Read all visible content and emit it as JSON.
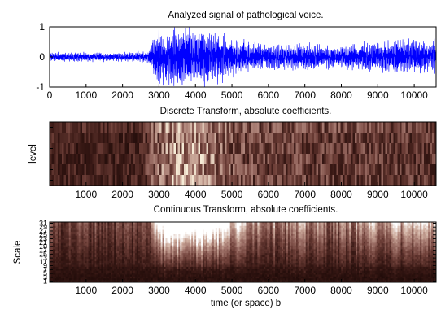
{
  "chart_data": [
    {
      "type": "line",
      "title": "Analyzed signal of pathological voice.",
      "xlabel": "",
      "ylabel": "",
      "xlim": [
        0,
        10600
      ],
      "ylim": [
        -1,
        1
      ],
      "x_ticks": [
        "0",
        "1000",
        "2000",
        "3000",
        "4000",
        "5000",
        "6000",
        "7000",
        "8000",
        "9000",
        "10000"
      ],
      "y_ticks": [
        "1",
        "0",
        "-1"
      ],
      "series_color": "#0000ff",
      "envelope": {
        "x": [
          0,
          1000,
          2000,
          2700,
          2900,
          3500,
          4000,
          4500,
          5000,
          6000,
          7000,
          8000,
          9000,
          10000,
          10600
        ],
        "amplitude": [
          0.15,
          0.15,
          0.15,
          0.18,
          0.8,
          1.0,
          1.0,
          0.9,
          0.6,
          0.42,
          0.42,
          0.38,
          0.5,
          0.55,
          0.55
        ]
      }
    },
    {
      "type": "heatmap",
      "title": "Discrete Transform, absolute coefficients.",
      "xlabel": "",
      "ylabel": "level",
      "xlim": [
        0,
        10600
      ],
      "x_ticks": [
        "1000",
        "2000",
        "3000",
        "4000",
        "5000",
        "6000",
        "7000",
        "8000",
        "9000",
        "10000"
      ],
      "levels": 6,
      "colormap": [
        "#1a0806",
        "#3b1a16",
        "#6e3f38",
        "#a0736a",
        "#cfae9f",
        "#f6ecd7"
      ],
      "intensity_profile": {
        "x": [
          0,
          2500,
          2900,
          3500,
          4200,
          5000,
          6000,
          8000,
          10600
        ],
        "value": [
          0.35,
          0.35,
          0.6,
          0.85,
          0.8,
          0.55,
          0.5,
          0.48,
          0.45
        ]
      }
    },
    {
      "type": "heatmap",
      "title": "Continuous Transform, absolute coefficients.",
      "xlabel": "time (or space) b",
      "ylabel": "Scale",
      "xlim": [
        0,
        10600
      ],
      "x_ticks": [
        "1000",
        "2000",
        "3000",
        "4000",
        "5000",
        "6000",
        "7000",
        "8000",
        "9000",
        "10000"
      ],
      "y_ticks": [
        "31",
        "29",
        "27",
        "25",
        "23",
        "21",
        "19",
        "17",
        "15",
        "13",
        "11",
        "9",
        "7",
        "5",
        "3",
        "1"
      ],
      "colormap": [
        "#1a0806",
        "#3b1a16",
        "#6e3f38",
        "#a0736a",
        "#cfae9f",
        "#ffffff"
      ]
    }
  ]
}
